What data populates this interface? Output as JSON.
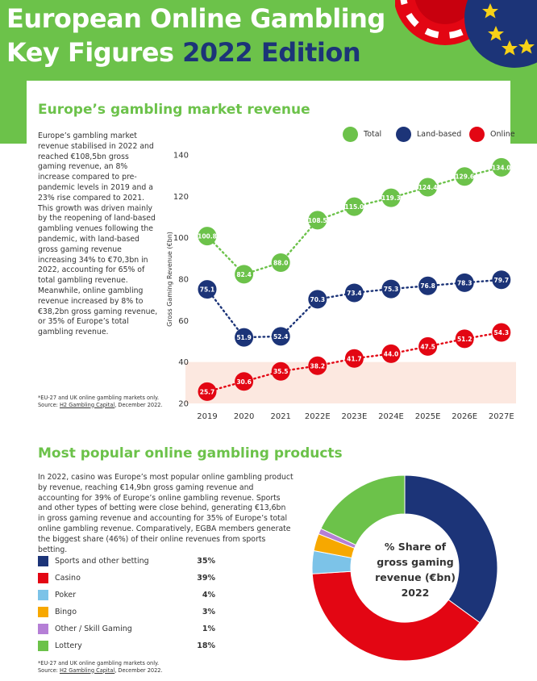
{
  "header": {
    "title_line1": "European Online Gambling",
    "title_line2_a": "Key Figures",
    "title_line2_b": "2022 Edition"
  },
  "section1": {
    "heading": "Europe’s gambling market revenue",
    "paragraph": "Europe’s gambling market revenue stabilised in 2022 and reached €108,5bn gross gaming revenue, an 8% increase compared to pre-pandemic levels in 2019 and a 23% rise compared to 2021. This growth was driven mainly by the reopening of land-based gambling venues following the pandemic, with land-based gross gaming revenue increasing 34% to €70,3bn in 2022, accounting for 65% of total gambling revenue. Meanwhile, online gambling revenue increased by 8% to €38,2bn gross gaming revenue, or 35% of Europe’s total gambling revenue.",
    "note": "*EU-27 and UK online gambling markets only.",
    "source_prefix": "Source: ",
    "source_link": "H2 Gambling Capital",
    "source_suffix": ", December 2022."
  },
  "section2": {
    "heading": "Most popular online gambling products",
    "paragraph": "In 2022, casino was Europe’s most popular online gambling product by revenue, reaching €14,9bn gross gaming revenue and accounting for 39% of Europe’s online gambling revenue. Sports and other types of betting were close behind, generating €13,6bn in gross gaming revenue and accounting for 35% of Europe’s total online gambling revenue. Comparatively, EGBA members generate the biggest share (46%) of their online revenues from sports betting.",
    "note": "*EU-27 and UK online gambling markets only.",
    "source_prefix": "Source: ",
    "source_link": "H2 Gambling Capital",
    "source_suffix": ", December 2022.",
    "center_line1": "% Share of",
    "center_line2": "gross gaming",
    "center_line3": "revenue (€bn)",
    "center_line4": "2022"
  },
  "colors": {
    "green": "#6cc24a",
    "navy": "#1c3478",
    "red": "#e30613",
    "light_blue": "#7cc3e8",
    "amber": "#f7a800",
    "purple": "#b57fd6",
    "shade": "#fce8e0"
  },
  "chart_data": [
    {
      "type": "line",
      "title": "Europe’s gambling market revenue",
      "ylabel": "Gross Gaming Revenue (€bn)",
      "xlabel": "",
      "ylim": [
        20,
        140
      ],
      "yticks": [
        20,
        40,
        60,
        80,
        100,
        120,
        140
      ],
      "grid": false,
      "shaded_band": [
        20,
        40
      ],
      "legend": "top-right",
      "x": [
        "2019",
        "2020",
        "2021",
        "2022E",
        "2023E",
        "2024E",
        "2025E",
        "2026E",
        "2027E"
      ],
      "series": [
        {
          "name": "Total",
          "color": "#6cc24a",
          "values": [
            100.8,
            82.4,
            88.0,
            108.5,
            115.0,
            119.3,
            124.4,
            129.6,
            134.0
          ],
          "labels": [
            "100.8",
            "82.4",
            "88.0",
            "108.5",
            "115.0",
            "119.3",
            "124.4",
            "129.6",
            "134.0"
          ]
        },
        {
          "name": "Land-based",
          "color": "#1c3478",
          "values": [
            75.1,
            51.9,
            52.4,
            70.3,
            73.4,
            75.3,
            76.8,
            78.3,
            79.7
          ],
          "labels": [
            "75.1",
            "51.9",
            "52.4",
            "70.3",
            "73.4",
            "75.3",
            "76.8",
            "78.3",
            "79.7"
          ]
        },
        {
          "name": "Online",
          "color": "#e30613",
          "values": [
            25.7,
            30.6,
            35.5,
            38.2,
            41.7,
            44.0,
            47.5,
            51.2,
            54.3
          ],
          "labels": [
            "25.7",
            "30.6",
            "35.5",
            "38.2",
            "41.7",
            "44.0",
            "47.5",
            "51.2",
            "54.3"
          ]
        }
      ]
    },
    {
      "type": "pie",
      "title": "% Share of gross gaming revenue (€bn) 2022",
      "categories": [
        "Sports and other betting",
        "Casino",
        "Poker",
        "Bingo",
        "Other / Skill Gaming",
        "Lottery"
      ],
      "values": [
        35,
        39,
        4,
        3,
        1,
        18
      ],
      "value_labels": [
        "35%",
        "39%",
        "4%",
        "3%",
        "1%",
        "18%"
      ],
      "colors": [
        "#1c3478",
        "#e30613",
        "#7cc3e8",
        "#f7a800",
        "#b57fd6",
        "#6cc24a"
      ]
    }
  ]
}
